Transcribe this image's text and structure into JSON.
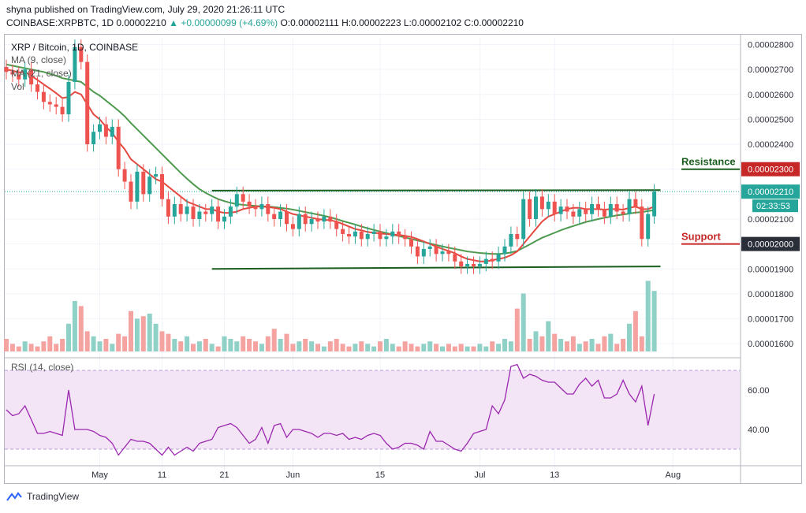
{
  "header": {
    "line1": "shyna published on TradingView.com, July 29, 2020 21:26:11 UTC",
    "pair": "COINBASE:XRPBTC, 1D",
    "open_value": "0.00002210",
    "change": "+0.00000099 (+4.69%)",
    "ohlc": "O:0.00002111 H:0.00002223 L:0.00002102 C:0.00002210",
    "change_arrow": "▲"
  },
  "legend": {
    "title": "XRP / Bitcoin, 1D, COINBASE",
    "ma9": "MA (9, close)",
    "ma21": "MA (21, close)",
    "vol": "Vol",
    "rsi": "RSI (14, close)"
  },
  "annotations": {
    "resistance": "Resistance",
    "support": "Support",
    "resistance_color": "#1b5e20",
    "support_color": "#c62828"
  },
  "price_labels": {
    "current_price": "0.00002210",
    "countdown": "02:33:53",
    "resistance_level": "0.00002300",
    "support_level": "0.00002000"
  },
  "footer": {
    "brand": "TradingView"
  },
  "colors": {
    "up": "#26a69a",
    "down": "#ef5350",
    "up_vol": "#8fd1c6",
    "down_vol": "#f5a3a1",
    "ma9": "#e5483f",
    "ma21": "#4e9a4f",
    "rsi_line": "#9c27b0",
    "rsi_band": "#f3e5f5",
    "channel": "#1b5e20",
    "resistance_bg": "#c62828",
    "support_bg": "#2a2e39",
    "price_bg": "#26a69a",
    "axis_text": "#2a2e39"
  },
  "chart_data": {
    "type": "candlestick",
    "price_axis": {
      "ylim": [
        1.55e-05,
        2.83e-05
      ],
      "ticks": [
        "0.00002800",
        "0.00002700",
        "0.00002600",
        "0.00002500",
        "0.00002400",
        "0.00002300",
        "0.00002200",
        "0.00002100",
        "0.00002000",
        "0.00001900",
        "0.00001800",
        "0.00001700",
        "0.00001600"
      ]
    },
    "rsi_axis": {
      "ylim": [
        22,
        76
      ],
      "ticks": [
        "60.00",
        "40.00"
      ],
      "bands": [
        30,
        70
      ]
    },
    "x_axis": {
      "ticks": [
        {
          "label": "May",
          "index": 15
        },
        {
          "label": "11",
          "index": 25
        },
        {
          "label": "21",
          "index": 35
        },
        {
          "label": "Jun",
          "index": 46
        },
        {
          "label": "15",
          "index": 60
        },
        {
          "label": "Jul",
          "index": 76
        },
        {
          "label": "13",
          "index": 88
        },
        {
          "label": "Aug",
          "index": 107
        }
      ]
    },
    "close": [
      2.69,
      2.68,
      2.66,
      2.7,
      2.64,
      2.61,
      2.57,
      2.56,
      2.55,
      2.52,
      2.65,
      2.79,
      2.73,
      2.4,
      2.45,
      2.48,
      2.43,
      2.47,
      2.3,
      2.25,
      2.17,
      2.29,
      2.2,
      2.27,
      2.28,
      2.18,
      2.11,
      2.16,
      2.12,
      2.15,
      2.1,
      2.13,
      2.12,
      2.15,
      2.09,
      2.11,
      2.15,
      2.2,
      2.17,
      2.15,
      2.14,
      2.16,
      2.12,
      2.1,
      2.13,
      2.08,
      2.06,
      2.12,
      2.08,
      2.1,
      2.09,
      2.11,
      2.09,
      2.06,
      2.04,
      2.03,
      2.05,
      2.02,
      2.04,
      2.05,
      2.02,
      2.03,
      2.05,
      2.03,
      2.02,
      1.99,
      1.95,
      1.98,
      1.99,
      1.96,
      1.97,
      1.96,
      1.93,
      1.91,
      1.92,
      1.91,
      1.92,
      1.94,
      1.93,
      1.96,
      1.99,
      2.04,
      2.02,
      2.18,
      2.1,
      2.19,
      2.14,
      2.17,
      2.12,
      2.15,
      2.13,
      2.11,
      2.14,
      2.12,
      2.16,
      2.14,
      2.11,
      2.16,
      2.13,
      2.12,
      2.18,
      2.15,
      2.02,
      2.12,
      2.21
    ],
    "open": [
      2.71,
      2.69,
      2.68,
      2.66,
      2.7,
      2.64,
      2.61,
      2.57,
      2.56,
      2.55,
      2.52,
      2.65,
      2.79,
      2.73,
      2.4,
      2.45,
      2.48,
      2.43,
      2.47,
      2.3,
      2.25,
      2.17,
      2.29,
      2.2,
      2.27,
      2.28,
      2.18,
      2.11,
      2.16,
      2.12,
      2.15,
      2.1,
      2.13,
      2.12,
      2.15,
      2.09,
      2.11,
      2.15,
      2.2,
      2.17,
      2.15,
      2.14,
      2.16,
      2.12,
      2.1,
      2.13,
      2.08,
      2.06,
      2.12,
      2.08,
      2.1,
      2.09,
      2.11,
      2.09,
      2.06,
      2.04,
      2.03,
      2.05,
      2.02,
      2.04,
      2.05,
      2.02,
      2.03,
      2.05,
      2.03,
      2.02,
      1.99,
      1.95,
      1.98,
      1.99,
      1.96,
      1.97,
      1.96,
      1.93,
      1.91,
      1.92,
      1.91,
      1.92,
      1.94,
      1.93,
      1.96,
      1.99,
      2.04,
      2.02,
      2.18,
      2.1,
      2.19,
      2.14,
      2.17,
      2.12,
      2.15,
      2.13,
      2.11,
      2.14,
      2.12,
      2.16,
      2.14,
      2.11,
      2.16,
      2.13,
      2.12,
      2.18,
      2.15,
      2.02,
      2.111
    ],
    "ma9": [
      2.7,
      2.695,
      2.688,
      2.69,
      2.675,
      2.658,
      2.64,
      2.623,
      2.605,
      2.585,
      2.59,
      2.61,
      2.6,
      2.56,
      2.52,
      2.5,
      2.47,
      2.445,
      2.41,
      2.38,
      2.34,
      2.32,
      2.3,
      2.28,
      2.26,
      2.25,
      2.23,
      2.21,
      2.19,
      2.17,
      2.16,
      2.15,
      2.14,
      2.14,
      2.13,
      2.125,
      2.125,
      2.13,
      2.14,
      2.145,
      2.15,
      2.15,
      2.148,
      2.145,
      2.14,
      2.13,
      2.12,
      2.115,
      2.11,
      2.105,
      2.1,
      2.097,
      2.095,
      2.09,
      2.08,
      2.07,
      2.06,
      2.055,
      2.048,
      2.045,
      2.042,
      2.04,
      2.038,
      2.036,
      2.033,
      2.028,
      2.02,
      2.01,
      2.0,
      1.99,
      1.98,
      1.972,
      1.963,
      1.95,
      1.94,
      1.935,
      1.93,
      1.93,
      1.935,
      1.94,
      1.945,
      1.955,
      1.97,
      2.0,
      2.03,
      2.06,
      2.09,
      2.11,
      2.12,
      2.13,
      2.14,
      2.145,
      2.145,
      2.14,
      2.14,
      2.14,
      2.138,
      2.14,
      2.14,
      2.138,
      2.145,
      2.15,
      2.14,
      2.14,
      2.15
    ],
    "ma21": [
      2.72,
      2.715,
      2.71,
      2.705,
      2.7,
      2.695,
      2.69,
      2.682,
      2.675,
      2.665,
      2.66,
      2.655,
      2.65,
      2.63,
      2.61,
      2.595,
      2.575,
      2.555,
      2.535,
      2.512,
      2.485,
      2.46,
      2.435,
      2.41,
      2.385,
      2.36,
      2.335,
      2.31,
      2.285,
      2.262,
      2.24,
      2.22,
      2.205,
      2.192,
      2.18,
      2.172,
      2.165,
      2.16,
      2.157,
      2.155,
      2.153,
      2.151,
      2.15,
      2.148,
      2.145,
      2.142,
      2.138,
      2.133,
      2.128,
      2.123,
      2.118,
      2.113,
      2.107,
      2.1,
      2.092,
      2.085,
      2.078,
      2.07,
      2.063,
      2.056,
      2.05,
      2.044,
      2.038,
      2.032,
      2.026,
      2.02,
      2.014,
      2.008,
      2.002,
      1.996,
      1.99,
      1.985,
      1.98,
      1.975,
      1.97,
      1.967,
      1.964,
      1.962,
      1.96,
      1.96,
      1.962,
      1.966,
      1.972,
      1.985,
      1.998,
      2.012,
      2.025,
      2.035,
      2.045,
      2.055,
      2.064,
      2.072,
      2.08,
      2.088,
      2.094,
      2.1,
      2.105,
      2.11,
      2.115,
      2.118,
      2.122,
      2.126,
      2.128,
      2.132,
      2.136
    ],
    "volume": [
      5,
      3,
      2,
      4,
      3,
      2,
      4,
      6,
      3,
      5,
      11,
      20,
      18,
      8,
      6,
      4,
      5,
      3,
      7,
      6,
      16,
      13,
      14,
      15,
      11,
      8,
      7,
      5,
      4,
      6,
      3,
      4,
      5,
      3,
      2,
      6,
      5,
      4,
      6,
      5,
      4,
      3,
      6,
      9,
      5,
      7,
      3,
      4,
      5,
      4,
      3,
      2,
      4,
      5,
      3,
      2,
      3,
      4,
      3,
      2,
      4,
      5,
      3,
      2,
      4,
      3,
      2,
      3,
      4,
      3,
      2,
      3,
      2,
      3,
      2,
      2,
      3,
      2,
      4,
      3,
      5,
      4,
      17,
      23,
      5,
      8,
      6,
      12,
      7,
      5,
      4,
      6,
      3,
      4,
      5,
      3,
      6,
      7,
      3,
      5,
      11,
      16,
      6,
      28,
      24
    ],
    "rsi": [
      50,
      47,
      48,
      52,
      45,
      38,
      38,
      39,
      38,
      37,
      60,
      40,
      40,
      40,
      39,
      37,
      36,
      33,
      27,
      31,
      35,
      34,
      34,
      33,
      30,
      27,
      31,
      27,
      29,
      31,
      29,
      33,
      34,
      35,
      41,
      42,
      43,
      41,
      37,
      33,
      35,
      41,
      33,
      42,
      43,
      36,
      40,
      40,
      39,
      38,
      36,
      38,
      38,
      37,
      38,
      35,
      36,
      35,
      37,
      38,
      37,
      33,
      30,
      31,
      33,
      33,
      32,
      30,
      39,
      34,
      34,
      32,
      30,
      29,
      33,
      38,
      39,
      40,
      52,
      48,
      55,
      72,
      73,
      66,
      68,
      67,
      65,
      64,
      64,
      61,
      58,
      58,
      63,
      66,
      62,
      65,
      56,
      56,
      58,
      65,
      58,
      54,
      62,
      42,
      58
    ],
    "channel_lines": [
      {
        "from": {
          "index": 33,
          "value": 2.214
        },
        "to": {
          "index": 105,
          "value": 2.216
        }
      },
      {
        "from": {
          "index": 33,
          "value": 1.9
        },
        "to": {
          "index": 105,
          "value": 1.91
        }
      }
    ],
    "units_note_scale": "1e-5"
  }
}
